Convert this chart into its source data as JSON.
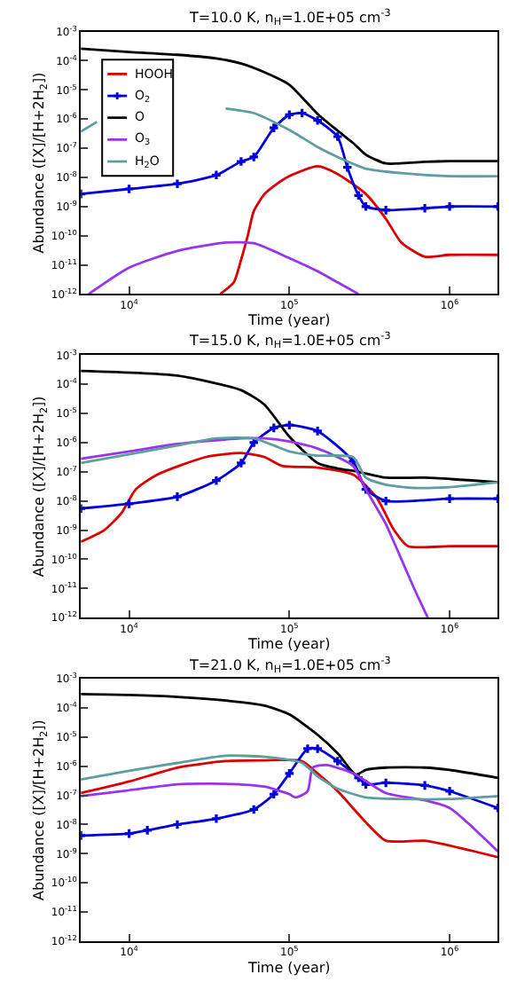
{
  "chart_data": [
    {
      "type": "line",
      "title": "T=10.0 K, n$_{H}$=1.0E+05 cm$^{-3}$",
      "xlabel": "Time (year)",
      "ylabel": "Abundance ([X]/[H+2H$_{2}$])",
      "log": "xy",
      "xlim": [
        5000,
        2000000
      ],
      "ylim": [
        1e-12,
        0.001
      ],
      "xticks": [
        {
          "value": 10000,
          "label": "10$^{4}$"
        },
        {
          "value": 100000,
          "label": "10$^{5}$"
        },
        {
          "value": 1000000,
          "label": "10$^{6}$"
        }
      ],
      "yticks": [
        {
          "value": 1e-12,
          "label": "10$^{-12}$"
        },
        {
          "value": 1e-11,
          "label": "10$^{-11}$"
        },
        {
          "value": 1e-10,
          "label": "10$^{-10}$"
        },
        {
          "value": 1e-09,
          "label": "10$^{-9}$"
        },
        {
          "value": 1e-08,
          "label": "10$^{-8}$"
        },
        {
          "value": 1e-07,
          "label": "10$^{-7}$"
        },
        {
          "value": 1e-06,
          "label": "10$^{-6}$"
        },
        {
          "value": 1e-05,
          "label": "10$^{-5}$"
        },
        {
          "value": 0.0001,
          "label": "10$^{-4}$"
        },
        {
          "value": 0.001,
          "label": "10$^{-3}$"
        }
      ],
      "legend": "top left",
      "series": [
        {
          "name": "HOOH",
          "color": "#dd0000",
          "x": [
            37000,
            45000,
            50000,
            55000,
            60000,
            70000,
            80000,
            100000,
            150000,
            200000,
            300000,
            400000,
            500000,
            700000,
            1000000,
            2000000
          ],
          "values": [
            1e-12,
            2.5e-12,
            1.5e-11,
            1e-10,
            7e-10,
            2.7e-09,
            5e-09,
            1.1e-08,
            2.4e-08,
            1.3e-08,
            2.7e-09,
            3.8e-10,
            5.8e-11,
            1.9e-11,
            2.2e-11,
            2.2e-11
          ]
        },
        {
          "name": "O$_{2}$",
          "color": "#0000dd",
          "marker": "cross",
          "x": [
            5000,
            10000,
            20000,
            35000,
            50000,
            60000,
            80000,
            100000,
            120000,
            150000,
            200000,
            230000,
            270000,
            300000,
            400000,
            700000,
            1000000,
            2000000
          ],
          "values": [
            2.7e-09,
            4e-09,
            6e-09,
            1.2e-08,
            3.5e-08,
            5e-08,
            5e-07,
            1.4e-06,
            1.6e-06,
            9e-07,
            2.5e-07,
            2.2e-08,
            2.4e-09,
            1e-09,
            7.5e-10,
            8.7e-10,
            1e-09,
            1e-09
          ]
        },
        {
          "name": "O",
          "color": "#000000",
          "x": [
            5000,
            10000,
            20000,
            35000,
            50000,
            70000,
            100000,
            150000,
            200000,
            250000,
            300000,
            400000,
            700000,
            1000000,
            2000000
          ],
          "values": [
            0.00026,
            0.0002,
            0.00016,
            0.00012,
            8e-05,
            4e-05,
            1.5e-05,
            1.5e-06,
            4e-07,
            1.5e-07,
            6e-08,
            3e-08,
            3.4e-08,
            3.6e-08,
            3.6e-08
          ]
        },
        {
          "name": "O$_{3}$",
          "color": "#9933ee",
          "x": [
            5600,
            10000,
            20000,
            40000,
            60000,
            100000,
            150000,
            200000,
            270000
          ],
          "values": [
            1e-12,
            8e-12,
            3e-11,
            5.8e-11,
            5.5e-11,
            1.7e-11,
            6e-12,
            2.5e-12,
            1e-12
          ]
        },
        {
          "name": "H$_{2}$O",
          "color": "#5f9ea0",
          "x": [
            5000,
            6300,
            7000,
            10000,
            40000,
            60000,
            100000,
            150000,
            200000,
            300000,
            500000,
            1000000,
            2000000
          ],
          "values": [
            3.7e-07,
            8e-07,
            null,
            null,
            2.3e-06,
            1.6e-06,
            4.2e-07,
            1.1e-07,
            5e-08,
            2e-08,
            1.4e-08,
            1.1e-08,
            1.1e-08
          ]
        }
      ]
    },
    {
      "type": "line",
      "title": "T=15.0 K, n$_{H}$=1.0E+05 cm$^{-3}$",
      "xlabel": "Time (year)",
      "ylabel": "Abundance ([X]/[H+2H$_{2}$])",
      "log": "xy",
      "xlim": [
        5000,
        2000000
      ],
      "ylim": [
        1e-12,
        0.001
      ],
      "xticks": [
        {
          "value": 10000,
          "label": "10$^{4}$"
        },
        {
          "value": 100000,
          "label": "10$^{5}$"
        },
        {
          "value": 1000000,
          "label": "10$^{6}$"
        }
      ],
      "yticks": [
        {
          "value": 1e-12,
          "label": "10$^{-12}$"
        },
        {
          "value": 1e-11,
          "label": "10$^{-11}$"
        },
        {
          "value": 1e-10,
          "label": "10$^{-10}$"
        },
        {
          "value": 1e-09,
          "label": "10$^{-9}$"
        },
        {
          "value": 1e-08,
          "label": "10$^{-8}$"
        },
        {
          "value": 1e-07,
          "label": "10$^{-7}$"
        },
        {
          "value": 1e-06,
          "label": "10$^{-6}$"
        },
        {
          "value": 1e-05,
          "label": "10$^{-5}$"
        },
        {
          "value": 0.0001,
          "label": "10$^{-4}$"
        },
        {
          "value": 0.001,
          "label": "10$^{-3}$"
        }
      ],
      "series": [
        {
          "color": "#dd0000",
          "x": [
            5000,
            7000,
            9000,
            11000,
            15000,
            30000,
            50000,
            70000,
            90000,
            150000,
            250000,
            350000,
            450000,
            550000,
            1000000,
            2000000
          ],
          "values": [
            4e-10,
            1e-09,
            4e-09,
            2.5e-08,
            8e-08,
            3.2e-07,
            4.4e-07,
            3.2e-07,
            1.6e-07,
            1.4e-07,
            8e-08,
            1.3e-08,
            1e-09,
            2.8e-10,
            2.8e-10,
            2.8e-10
          ]
        },
        {
          "color": "#0000dd",
          "marker": "cross",
          "x": [
            5000,
            10000,
            20000,
            35000,
            50000,
            60000,
            80000,
            100000,
            150000,
            250000,
            300000,
            400000,
            1000000,
            2000000
          ],
          "values": [
            5.5e-09,
            8e-09,
            1.4e-08,
            5e-08,
            2e-07,
            1e-06,
            3.2e-06,
            4e-06,
            2.5e-06,
            2.3e-07,
            2.5e-08,
            1e-08,
            1.2e-08,
            1.2e-08
          ]
        },
        {
          "color": "#000000",
          "x": [
            5000,
            20000,
            50000,
            70000,
            100000,
            150000,
            200000,
            270000,
            400000,
            700000,
            2000000
          ],
          "values": [
            0.00029,
            0.0002,
            6.3e-05,
            2e-05,
            1.6e-06,
            2e-07,
            1.3e-07,
            1e-07,
            6.3e-08,
            6.3e-08,
            4.4e-08
          ]
        },
        {
          "color": "#9933ee",
          "x": [
            5000,
            10000,
            20000,
            50000,
            70000,
            100000,
            150000,
            250000,
            300000,
            400000,
            500000,
            600000,
            730000
          ],
          "values": [
            2.8e-07,
            5e-07,
            9e-07,
            1.4e-06,
            1.4e-06,
            1.1e-06,
            6.3e-07,
            1.6e-07,
            2.5e-08,
            1.6e-09,
            1e-10,
            1e-11,
            1e-12
          ]
        },
        {
          "color": "#5f9ea0",
          "x": [
            5000,
            10000,
            20000,
            35000,
            60000,
            80000,
            100000,
            150000,
            250000,
            300000,
            400000,
            600000,
            1000000,
            2000000
          ],
          "values": [
            2e-07,
            4e-07,
            8e-07,
            1.4e-06,
            1.4e-06,
            8e-07,
            5e-07,
            3.6e-07,
            3.2e-07,
            6.3e-08,
            3.6e-08,
            2.8e-08,
            3e-08,
            4.4e-08
          ]
        }
      ]
    },
    {
      "type": "line",
      "title": "T=21.0 K, n$_{H}$=1.0E+05 cm$^{-3}$",
      "xlabel": "Time (year)",
      "ylabel": "Abundance ([X]/[H+2H$_{2}$])",
      "log": "xy",
      "xlim": [
        5000,
        2000000
      ],
      "ylim": [
        1e-12,
        0.001
      ],
      "xticks": [
        {
          "value": 10000,
          "label": "10$^{4}$"
        },
        {
          "value": 100000,
          "label": "10$^{5}$"
        },
        {
          "value": 1000000,
          "label": "10$^{6}$"
        }
      ],
      "yticks": [
        {
          "value": 1e-12,
          "label": "10$^{-12}$"
        },
        {
          "value": 1e-11,
          "label": "10$^{-11}$"
        },
        {
          "value": 1e-10,
          "label": "10$^{-10}$"
        },
        {
          "value": 1e-09,
          "label": "10$^{-9}$"
        },
        {
          "value": 1e-08,
          "label": "10$^{-8}$"
        },
        {
          "value": 1e-07,
          "label": "10$^{-7}$"
        },
        {
          "value": 1e-06,
          "label": "10$^{-6}$"
        },
        {
          "value": 1e-05,
          "label": "10$^{-5}$"
        },
        {
          "value": 0.0001,
          "label": "10$^{-4}$"
        },
        {
          "value": 0.001,
          "label": "10$^{-3}$"
        }
      ],
      "series": [
        {
          "color": "#dd0000",
          "x": [
            5000,
            10000,
            20000,
            40000,
            70000,
            120000,
            150000,
            200000,
            300000,
            400000,
            700000,
            1000000,
            2000000
          ],
          "values": [
            1.2e-07,
            3e-07,
            9e-07,
            1.5e-06,
            1.6e-06,
            1.5e-06,
            5.7e-07,
            1.4e-07,
            1.2e-08,
            2.8e-09,
            2.8e-09,
            1.9e-09,
            7.6e-10
          ]
        },
        {
          "color": "#0000dd",
          "marker": "cross",
          "x": [
            5000,
            10000,
            13000,
            20000,
            35000,
            60000,
            80000,
            100000,
            130000,
            150000,
            200000,
            270000,
            300000,
            400000,
            700000,
            1000000,
            2000000
          ],
          "values": [
            4.2e-09,
            4.9e-09,
            6.4e-09,
            1e-08,
            1.6e-08,
            3.3e-08,
            1.1e-07,
            5.7e-07,
            4e-06,
            4e-06,
            1.5e-06,
            4e-07,
            2.4e-07,
            2.7e-07,
            2.2e-07,
            1.4e-07,
            3.7e-08
          ]
        },
        {
          "color": "#000000",
          "x": [
            5000,
            10000,
            20000,
            40000,
            70000,
            100000,
            150000,
            200000,
            260000,
            300000,
            400000,
            700000,
            1000000,
            2000000
          ],
          "values": [
            0.0003,
            0.00028,
            0.00024,
            0.00018,
            0.00012,
            6e-05,
            1.2e-05,
            2.8e-06,
            5.2e-07,
            7.5e-07,
            9e-07,
            9e-07,
            7.5e-07,
            4e-07
          ]
        },
        {
          "color": "#9933ee",
          "x": [
            5000,
            10000,
            20000,
            40000,
            70000,
            100000,
            110000,
            130000,
            140000,
            170000,
            250000,
            400000,
            700000,
            1000000,
            2000000
          ],
          "values": [
            9.5e-08,
            1.5e-07,
            2.4e-07,
            2.5e-07,
            2e-07,
            1.1e-07,
            8.5e-08,
            1.4e-07,
            9e-07,
            1.1e-06,
            5.7e-07,
            1.2e-07,
            6.8e-08,
            3.7e-08,
            1.2e-09
          ]
        },
        {
          "color": "#5f9ea0",
          "x": [
            5000,
            10000,
            20000,
            40000,
            70000,
            120000,
            150000,
            200000,
            300000,
            500000,
            1000000,
            2000000
          ],
          "values": [
            3.5e-07,
            7e-07,
            1.3e-06,
            2.3e-06,
            2.1e-06,
            1.3e-06,
            4.5e-07,
            1.7e-07,
            8.5e-08,
            7.5e-08,
            7.5e-08,
            9.5e-08
          ]
        }
      ]
    }
  ]
}
